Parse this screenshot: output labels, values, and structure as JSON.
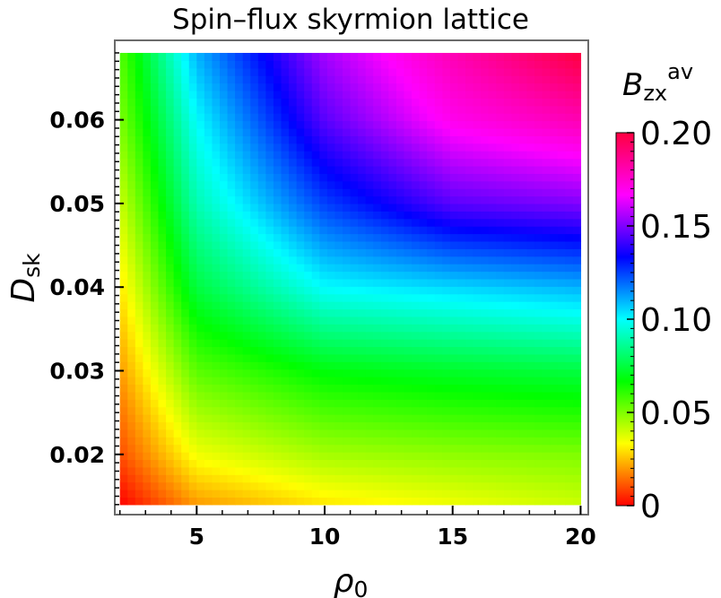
{
  "chart_data": {
    "type": "heatmap",
    "title": "Spin–flux skyrmion lattice",
    "xlabel": {
      "symbol": "ρ",
      "subscript": "0"
    },
    "ylabel": {
      "symbol": "D",
      "subscript": "sk"
    },
    "colorbar_label": {
      "symbol": "B",
      "subscript": "zx",
      "superscript": "av"
    },
    "xlim": [
      1.8,
      20.3
    ],
    "ylim": [
      0.0128,
      0.0695
    ],
    "data_extent": {
      "x": [
        2,
        20
      ],
      "y": [
        0.014,
        0.068
      ]
    },
    "x_ticks": [
      {
        "value": 5,
        "label": "5"
      },
      {
        "value": 10,
        "label": "10"
      },
      {
        "value": 15,
        "label": "15"
      },
      {
        "value": 20,
        "label": "20"
      }
    ],
    "y_ticks": [
      {
        "value": 0.02,
        "label": "0.02"
      },
      {
        "value": 0.03,
        "label": "0.03"
      },
      {
        "value": 0.04,
        "label": "0.04"
      },
      {
        "value": 0.05,
        "label": "0.05"
      },
      {
        "value": 0.06,
        "label": "0.06"
      }
    ],
    "colorbar": {
      "range": [
        0,
        0.2
      ],
      "ticks": [
        {
          "value": 0,
          "label": "0"
        },
        {
          "value": 0.05,
          "label": "0.05"
        },
        {
          "value": 0.1,
          "label": "0.10"
        },
        {
          "value": 0.15,
          "label": "0.15"
        },
        {
          "value": 0.2,
          "label": "0.20"
        }
      ],
      "colormap": [
        "#ff0000",
        "#ffff00",
        "#00ff00",
        "#00ffff",
        "#0000ff",
        "#ff00ff",
        "#ff0040"
      ]
    },
    "grid": false,
    "approx_values_by_y": [
      {
        "y": 0.014,
        "x": [
          2,
          5,
          10,
          15,
          20
        ],
        "z": [
          0.0,
          0.02,
          0.03,
          0.035,
          0.04
        ]
      },
      {
        "y": 0.02,
        "x": [
          2,
          5,
          10,
          15,
          20
        ],
        "z": [
          0.01,
          0.035,
          0.045,
          0.048,
          0.05
        ]
      },
      {
        "y": 0.03,
        "x": [
          2,
          5,
          10,
          15,
          20
        ],
        "z": [
          0.02,
          0.055,
          0.068,
          0.072,
          0.075
        ]
      },
      {
        "y": 0.04,
        "x": [
          2,
          5,
          10,
          15,
          20
        ],
        "z": [
          0.03,
          0.075,
          0.1,
          0.105,
          0.11
        ]
      },
      {
        "y": 0.05,
        "x": [
          2,
          5,
          10,
          15,
          20
        ],
        "z": [
          0.04,
          0.09,
          0.125,
          0.145,
          0.15
        ]
      },
      {
        "y": 0.06,
        "x": [
          2,
          5,
          10,
          15,
          20
        ],
        "z": [
          0.05,
          0.1,
          0.145,
          0.17,
          0.18
        ]
      },
      {
        "y": 0.068,
        "x": [
          2,
          5,
          10,
          15,
          20
        ],
        "z": [
          0.055,
          0.11,
          0.155,
          0.18,
          0.2
        ]
      }
    ]
  }
}
